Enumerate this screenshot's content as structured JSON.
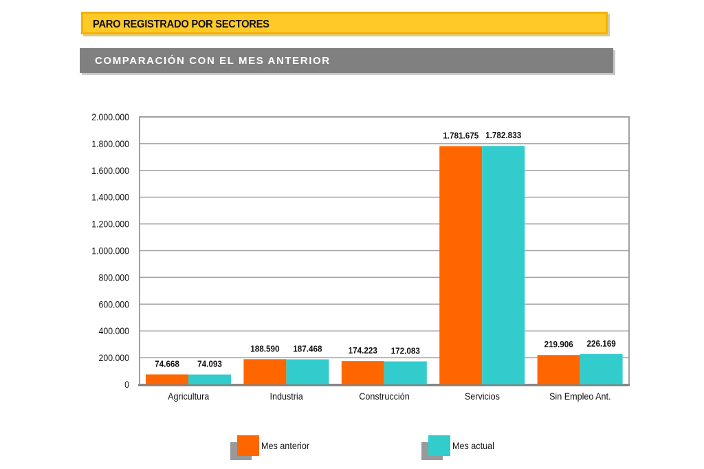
{
  "header": {
    "title": "PARO REGISTRADO POR SECTORES",
    "subtitle": "COMPARACIÓN CON EL MES ANTERIOR"
  },
  "colors": {
    "mes_anterior": "#ff6600",
    "mes_actual": "#33cccc",
    "title_bar": "#ffca28",
    "subtitle_bar": "#808080"
  },
  "chart_data": {
    "type": "bar",
    "title": "PARO REGISTRADO POR SECTORES",
    "subtitle": "COMPARACIÓN CON EL MES ANTERIOR",
    "xlabel": "",
    "ylabel": "",
    "ylim": [
      0,
      2000000
    ],
    "yticks": [
      0,
      200000,
      400000,
      600000,
      800000,
      1000000,
      1200000,
      1400000,
      1600000,
      1800000,
      2000000
    ],
    "ytick_labels": [
      "0",
      "200.000",
      "400.000",
      "600.000",
      "800.000",
      "1.000.000",
      "1.200.000",
      "1.400.000",
      "1.600.000",
      "1.800.000",
      "2.000.000"
    ],
    "grid": true,
    "legend_position": "bottom",
    "categories": [
      "Agricultura",
      "Industria",
      "Construcción",
      "Servicios",
      "Sin Empleo Ant."
    ],
    "series": [
      {
        "name": "Mes anterior",
        "color": "#ff6600",
        "values": [
          74668,
          188590,
          174223,
          1781675,
          219906
        ],
        "labels": [
          "74.668",
          "188.590",
          "174.223",
          "1.781.675",
          "219.906"
        ]
      },
      {
        "name": "Mes actual",
        "color": "#33cccc",
        "values": [
          74093,
          187468,
          172083,
          1782833,
          226169
        ],
        "labels": [
          "74.093",
          "187.468",
          "172.083",
          "1.782.833",
          "226.169"
        ]
      }
    ]
  }
}
